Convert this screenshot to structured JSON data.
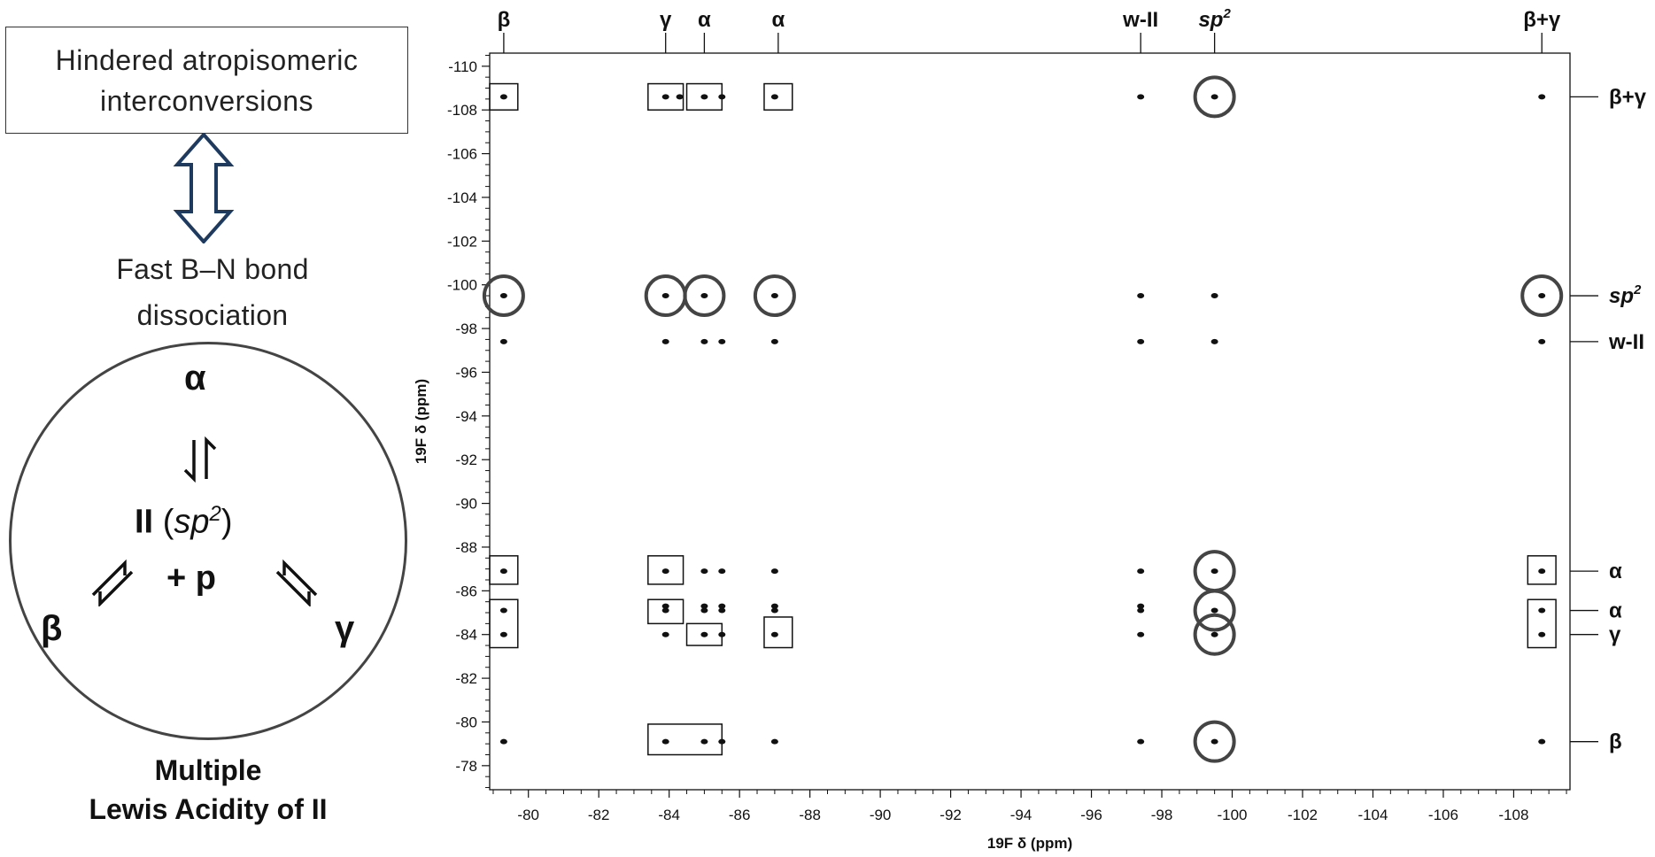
{
  "left_panel": {
    "box_line1": "Hindered atropisomeric",
    "box_line2": "interconversions",
    "fast_line1": "Fast B–N bond",
    "fast_line2": "dissociation",
    "state_alpha": "α",
    "state_beta": "β",
    "state_gamma": "γ",
    "center_II": "II",
    "center_sp_open": "(",
    "center_sp": "sp",
    "center_sp_sup": "2",
    "center_sp_close": ")",
    "center_plus_p": "+ p",
    "caption_line1": "Multiple",
    "caption_line2": "Lewis Acidity of II"
  },
  "chart_data": {
    "type": "scatter",
    "title": "",
    "xlabel": "19F δ (ppm)",
    "ylabel": "19F δ (ppm)",
    "xlim": [
      -78.9,
      -109.6
    ],
    "ylim": [
      -76.9,
      -110.6
    ],
    "x_ticks": [
      -80,
      -82,
      -84,
      -86,
      -88,
      -90,
      -92,
      -94,
      -96,
      -98,
      -100,
      -102,
      -104,
      -106,
      -108
    ],
    "y_ticks": [
      -78,
      -80,
      -82,
      -84,
      -86,
      -88,
      -90,
      -92,
      -94,
      -96,
      -98,
      -100,
      -102,
      -104,
      -106,
      -108,
      -110
    ],
    "top_labels": [
      {
        "text": "β",
        "x": -79.3
      },
      {
        "text": "γ",
        "x": -83.9
      },
      {
        "text": "α",
        "x": -85.0
      },
      {
        "text": "α",
        "x": -87.1
      },
      {
        "text": "w-II",
        "x": -97.4
      },
      {
        "text": "sp",
        "sup": "2",
        "x": -99.5
      },
      {
        "text": "β+γ",
        "x": -108.8
      }
    ],
    "right_labels": [
      {
        "text": "β+γ",
        "y": -108.6
      },
      {
        "text": "sp",
        "sup": "2",
        "y": -99.5
      },
      {
        "text": "w-II",
        "y": -97.4
      },
      {
        "text": "α",
        "y": -86.9
      },
      {
        "text": "α",
        "y": -85.1
      },
      {
        "text": "γ",
        "y": -84.0
      },
      {
        "text": "β",
        "y": -79.1
      }
    ],
    "peaks": [
      {
        "x": -79.3,
        "y": -108.6
      },
      {
        "x": -83.9,
        "y": -108.6
      },
      {
        "x": -84.3,
        "y": -108.6
      },
      {
        "x": -85.0,
        "y": -108.6
      },
      {
        "x": -85.5,
        "y": -108.6
      },
      {
        "x": -87.0,
        "y": -108.6
      },
      {
        "x": -97.4,
        "y": -108.6
      },
      {
        "x": -99.5,
        "y": -108.6
      },
      {
        "x": -108.8,
        "y": -108.6
      },
      {
        "x": -79.3,
        "y": -99.5
      },
      {
        "x": -83.9,
        "y": -99.5
      },
      {
        "x": -85.0,
        "y": -99.5
      },
      {
        "x": -87.0,
        "y": -99.5
      },
      {
        "x": -97.4,
        "y": -99.5
      },
      {
        "x": -99.5,
        "y": -99.5
      },
      {
        "x": -108.8,
        "y": -99.5
      },
      {
        "x": -79.3,
        "y": -97.4
      },
      {
        "x": -83.9,
        "y": -97.4
      },
      {
        "x": -85.0,
        "y": -97.4
      },
      {
        "x": -85.5,
        "y": -97.4
      },
      {
        "x": -87.0,
        "y": -97.4
      },
      {
        "x": -97.4,
        "y": -97.4
      },
      {
        "x": -99.5,
        "y": -97.4
      },
      {
        "x": -108.8,
        "y": -97.4
      },
      {
        "x": -79.3,
        "y": -86.9
      },
      {
        "x": -83.9,
        "y": -86.9
      },
      {
        "x": -85.0,
        "y": -86.9
      },
      {
        "x": -85.5,
        "y": -86.9
      },
      {
        "x": -87.0,
        "y": -86.9
      },
      {
        "x": -97.4,
        "y": -86.9
      },
      {
        "x": -99.5,
        "y": -86.9
      },
      {
        "x": -108.8,
        "y": -86.9
      },
      {
        "x": -79.3,
        "y": -85.1
      },
      {
        "x": -83.9,
        "y": -85.1
      },
      {
        "x": -85.0,
        "y": -85.1
      },
      {
        "x": -85.5,
        "y": -85.1
      },
      {
        "x": -87.0,
        "y": -85.1
      },
      {
        "x": -97.4,
        "y": -85.1
      },
      {
        "x": -99.5,
        "y": -85.1
      },
      {
        "x": -108.8,
        "y": -85.1
      },
      {
        "x": -83.9,
        "y": -85.3
      },
      {
        "x": -85.0,
        "y": -85.3
      },
      {
        "x": -85.5,
        "y": -85.3
      },
      {
        "x": -87.0,
        "y": -85.3
      },
      {
        "x": -97.4,
        "y": -85.3
      },
      {
        "x": -79.3,
        "y": -84.0
      },
      {
        "x": -83.9,
        "y": -84.0
      },
      {
        "x": -85.0,
        "y": -84.0
      },
      {
        "x": -85.5,
        "y": -84.0
      },
      {
        "x": -87.0,
        "y": -84.0
      },
      {
        "x": -97.4,
        "y": -84.0
      },
      {
        "x": -99.5,
        "y": -84.0
      },
      {
        "x": -108.8,
        "y": -84.0
      },
      {
        "x": -79.3,
        "y": -79.1
      },
      {
        "x": -83.9,
        "y": -79.1
      },
      {
        "x": -85.0,
        "y": -79.1
      },
      {
        "x": -85.5,
        "y": -79.1
      },
      {
        "x": -87.0,
        "y": -79.1
      },
      {
        "x": -97.4,
        "y": -79.1
      },
      {
        "x": -99.5,
        "y": -79.1
      },
      {
        "x": -108.8,
        "y": -79.1
      }
    ],
    "circled": [
      {
        "x": -99.5,
        "y": -108.6
      },
      {
        "x": -79.3,
        "y": -99.5
      },
      {
        "x": -83.9,
        "y": -99.5
      },
      {
        "x": -85.0,
        "y": -99.5
      },
      {
        "x": -87.0,
        "y": -99.5
      },
      {
        "x": -108.8,
        "y": -99.5
      },
      {
        "x": -99.5,
        "y": -86.9
      },
      {
        "x": -99.5,
        "y": -85.1
      },
      {
        "x": -99.5,
        "y": -84.0
      },
      {
        "x": -99.5,
        "y": -79.1
      }
    ],
    "boxed": [
      {
        "x1": -78.9,
        "x2": -79.7,
        "y1": -108.0,
        "y2": -109.2
      },
      {
        "x1": -83.4,
        "x2": -84.4,
        "y1": -108.0,
        "y2": -109.2
      },
      {
        "x1": -84.5,
        "x2": -85.5,
        "y1": -108.0,
        "y2": -109.2
      },
      {
        "x1": -86.7,
        "x2": -87.5,
        "y1": -108.0,
        "y2": -109.2
      },
      {
        "x1": -78.9,
        "x2": -79.7,
        "y1": -86.3,
        "y2": -87.6
      },
      {
        "x1": -83.4,
        "x2": -84.4,
        "y1": -86.3,
        "y2": -87.6
      },
      {
        "x1": -108.4,
        "x2": -109.2,
        "y1": -86.3,
        "y2": -87.6
      },
      {
        "x1": -78.9,
        "x2": -79.7,
        "y1": -83.4,
        "y2": -85.6
      },
      {
        "x1": -83.4,
        "x2": -84.4,
        "y1": -84.5,
        "y2": -85.6
      },
      {
        "x1": -108.4,
        "x2": -109.2,
        "y1": -83.4,
        "y2": -85.6
      },
      {
        "x1": -84.5,
        "x2": -85.5,
        "y1": -83.5,
        "y2": -84.5
      },
      {
        "x1": -86.7,
        "x2": -87.5,
        "y1": -83.4,
        "y2": -84.8
      },
      {
        "x1": -83.4,
        "x2": -85.5,
        "y1": -78.5,
        "y2": -79.9
      }
    ],
    "grid": false,
    "legend": "none"
  }
}
